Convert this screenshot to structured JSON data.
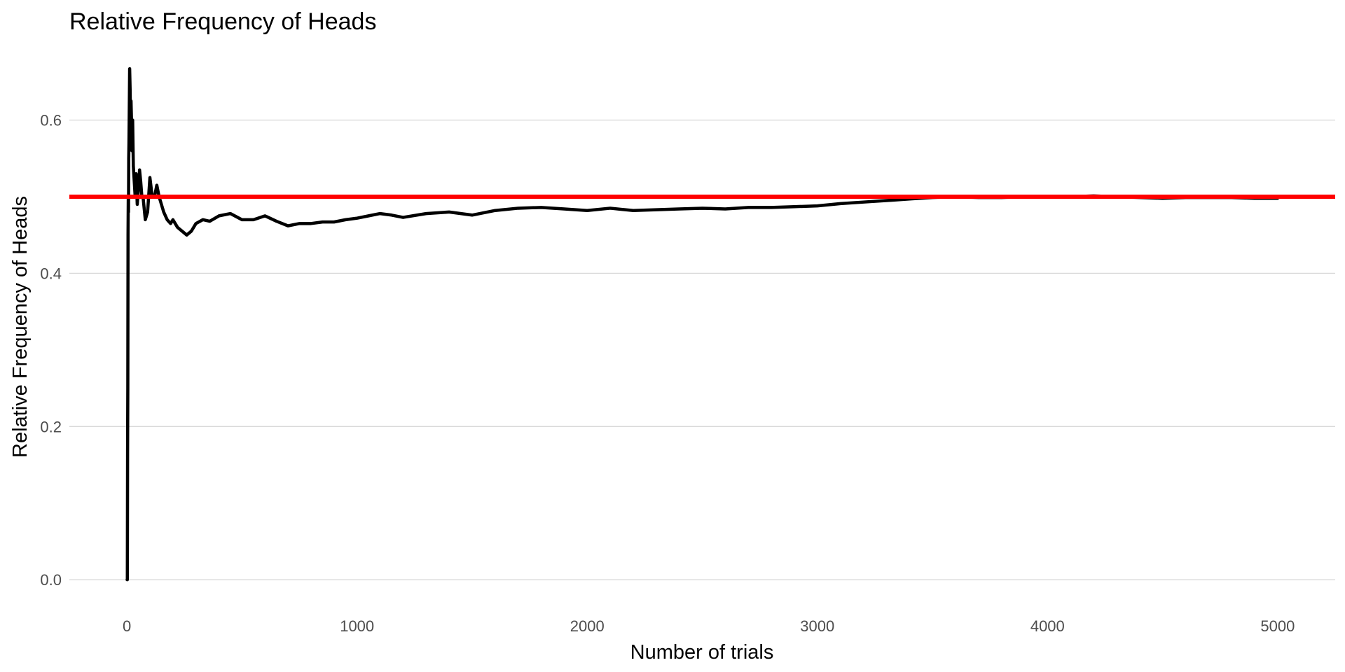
{
  "chart_data": {
    "type": "line",
    "title": "Relative Frequency of Heads",
    "xlabel": "Number of trials",
    "ylabel": "Relative Frequency of Heads",
    "xlim": [
      -250,
      5250
    ],
    "ylim": [
      -0.03,
      0.67
    ],
    "x_ticks": [
      0,
      1000,
      2000,
      3000,
      4000,
      5000
    ],
    "x_tick_labels": [
      "0",
      "1000",
      "2000",
      "3000",
      "4000",
      "5000"
    ],
    "y_ticks": [
      0.0,
      0.2,
      0.4,
      0.6
    ],
    "y_tick_labels": [
      "0.0",
      "0.2",
      "0.4",
      "0.6"
    ],
    "grid": "horizontal major",
    "legend": "none",
    "reference_line": {
      "y": 0.5,
      "color": "#ff0000"
    },
    "series": [
      {
        "color": "#000000",
        "x": [
          1,
          2,
          3,
          4,
          5,
          6,
          7,
          8,
          9,
          10,
          12,
          14,
          16,
          18,
          20,
          22,
          25,
          28,
          32,
          36,
          40,
          45,
          50,
          55,
          60,
          65,
          70,
          80,
          90,
          100,
          110,
          120,
          130,
          140,
          150,
          160,
          175,
          190,
          200,
          220,
          240,
          260,
          280,
          300,
          330,
          360,
          400,
          450,
          500,
          550,
          600,
          650,
          700,
          750,
          800,
          850,
          900,
          950,
          1000,
          1050,
          1100,
          1150,
          1200,
          1300,
          1400,
          1500,
          1600,
          1700,
          1800,
          1900,
          2000,
          2100,
          2200,
          2300,
          2400,
          2500,
          2600,
          2700,
          2800,
          2900,
          3000,
          3100,
          3200,
          3300,
          3400,
          3500,
          3600,
          3700,
          3800,
          3900,
          4000,
          4100,
          4200,
          4300,
          4400,
          4500,
          4600,
          4700,
          4800,
          4900,
          5000
        ],
        "y": [
          0.0,
          0.0,
          0.167,
          0.25,
          0.45,
          0.5,
          0.48,
          0.55,
          0.57,
          0.6,
          0.667,
          0.64,
          0.6,
          0.625,
          0.6,
          0.56,
          0.6,
          0.54,
          0.52,
          0.5,
          0.53,
          0.49,
          0.51,
          0.535,
          0.52,
          0.5,
          0.5,
          0.47,
          0.48,
          0.525,
          0.5,
          0.5,
          0.515,
          0.5,
          0.49,
          0.48,
          0.47,
          0.465,
          0.47,
          0.46,
          0.455,
          0.45,
          0.455,
          0.465,
          0.47,
          0.468,
          0.475,
          0.478,
          0.47,
          0.47,
          0.475,
          0.468,
          0.462,
          0.465,
          0.465,
          0.467,
          0.467,
          0.47,
          0.472,
          0.475,
          0.478,
          0.476,
          0.473,
          0.478,
          0.48,
          0.476,
          0.482,
          0.485,
          0.486,
          0.484,
          0.482,
          0.485,
          0.482,
          0.483,
          0.484,
          0.485,
          0.484,
          0.486,
          0.486,
          0.487,
          0.488,
          0.491,
          0.493,
          0.495,
          0.497,
          0.499,
          0.5,
          0.499,
          0.499,
          0.5,
          0.5,
          0.5,
          0.501,
          0.5,
          0.499,
          0.498,
          0.499,
          0.499,
          0.499,
          0.498,
          0.498
        ]
      }
    ]
  }
}
